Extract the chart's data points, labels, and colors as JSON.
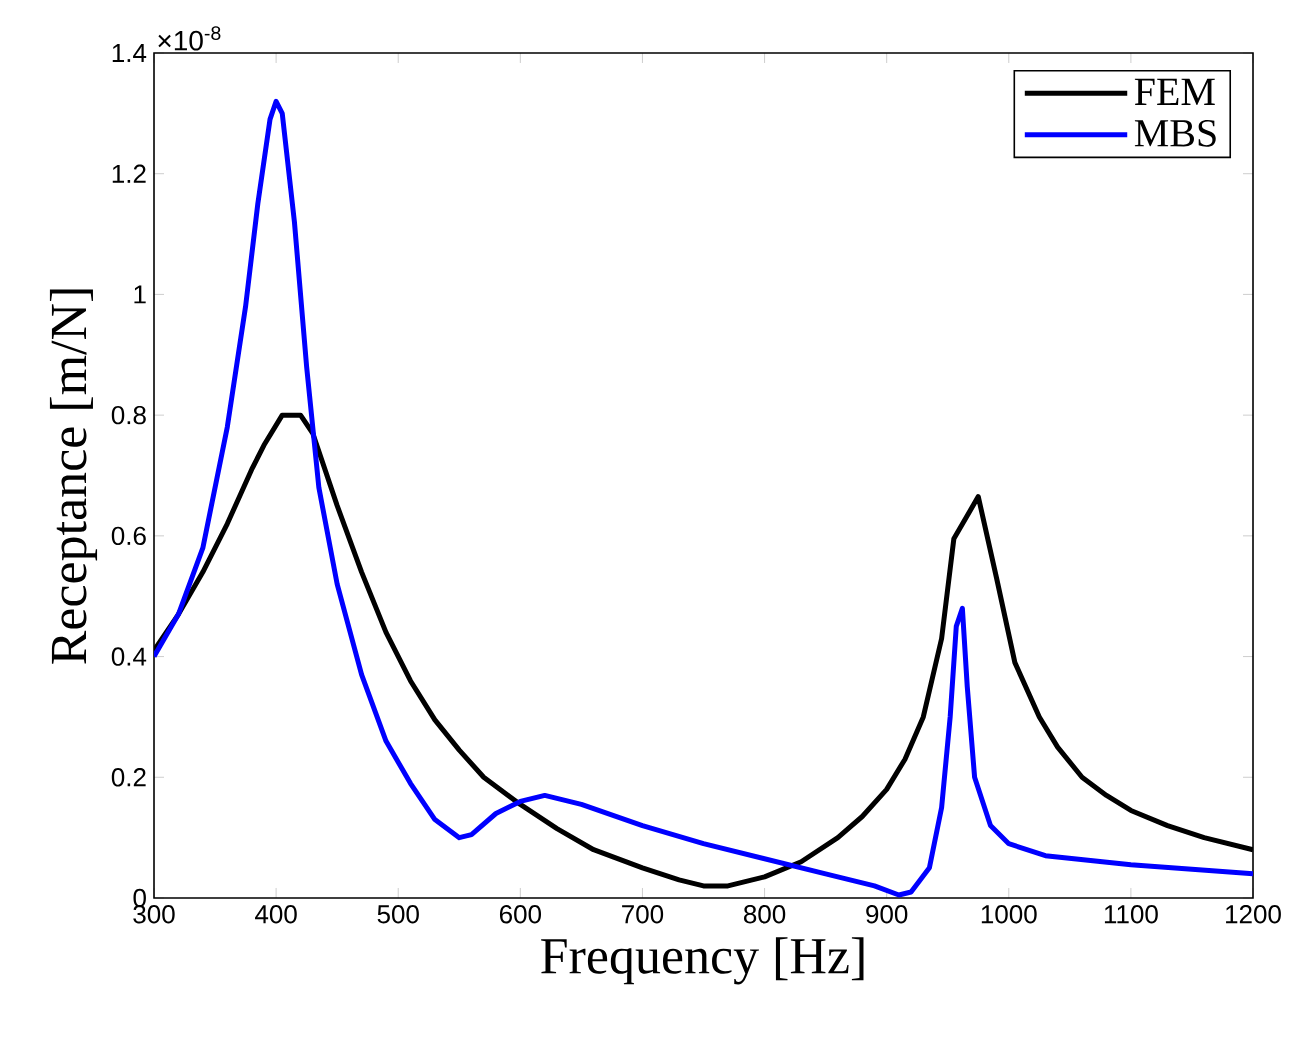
{
  "chart_data": {
    "type": "line",
    "xlabel": "Frequency [Hz]",
    "ylabel": "Receptance [m/N]",
    "xlim": [
      300,
      1200
    ],
    "xticks": [
      300,
      400,
      500,
      600,
      700,
      800,
      900,
      1000,
      1100,
      1200
    ],
    "ylim": [
      0,
      1.4
    ],
    "yticks": [
      0,
      0.2,
      0.4,
      0.6,
      0.8,
      1,
      1.2,
      1.4
    ],
    "legend": "top right",
    "annotations": [
      "×10$^{-8}$"
    ],
    "series": [
      {
        "name": "FEM",
        "color": "#000000",
        "x": [
          300,
          320,
          340,
          360,
          380,
          390,
          405,
          420,
          430,
          450,
          470,
          490,
          510,
          530,
          550,
          570,
          600,
          630,
          660,
          700,
          730,
          750,
          770,
          800,
          830,
          860,
          880,
          900,
          915,
          930,
          945,
          955,
          975,
          990,
          1005,
          1025,
          1040,
          1060,
          1080,
          1100,
          1130,
          1160,
          1200
        ],
        "values": [
          0.41,
          0.47,
          0.54,
          0.62,
          0.71,
          0.75,
          0.8,
          0.8,
          0.77,
          0.65,
          0.54,
          0.44,
          0.36,
          0.295,
          0.245,
          0.2,
          0.155,
          0.115,
          0.08,
          0.05,
          0.03,
          0.02,
          0.02,
          0.035,
          0.06,
          0.1,
          0.135,
          0.18,
          0.23,
          0.3,
          0.43,
          0.595,
          0.665,
          0.53,
          0.39,
          0.3,
          0.25,
          0.2,
          0.17,
          0.145,
          0.12,
          0.1,
          0.08
        ]
      },
      {
        "name": "MBS",
        "color": "#0000ff",
        "x": [
          300,
          320,
          340,
          360,
          375,
          385,
          395,
          400,
          405,
          415,
          425,
          435,
          450,
          470,
          490,
          510,
          530,
          550,
          560,
          580,
          600,
          620,
          650,
          700,
          750,
          800,
          850,
          890,
          910,
          920,
          935,
          945,
          952,
          957,
          962,
          966,
          972,
          985,
          1000,
          1030,
          1100,
          1200
        ],
        "values": [
          0.4,
          0.47,
          0.58,
          0.78,
          0.98,
          1.15,
          1.29,
          1.32,
          1.3,
          1.12,
          0.88,
          0.68,
          0.52,
          0.37,
          0.26,
          0.19,
          0.13,
          0.1,
          0.105,
          0.14,
          0.16,
          0.17,
          0.155,
          0.12,
          0.09,
          0.065,
          0.04,
          0.02,
          0.005,
          0.01,
          0.05,
          0.15,
          0.3,
          0.45,
          0.48,
          0.35,
          0.2,
          0.12,
          0.09,
          0.07,
          0.055,
          0.04
        ]
      }
    ]
  }
}
